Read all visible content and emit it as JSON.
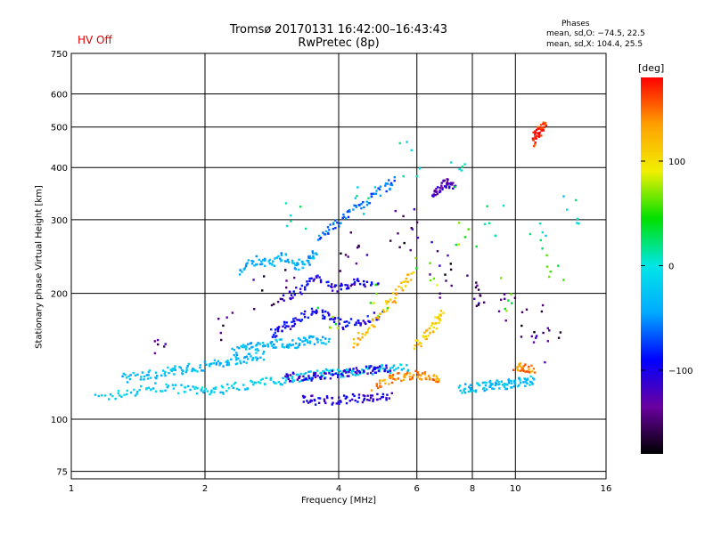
{
  "header": {
    "title_line1": "Tromsø 20170131 16:42:00–16:43:43",
    "title_line2": "RwPretec (8p)",
    "hv_status": "HV Off",
    "phases_title": "Phases",
    "phases_o": "mean, sd,O: −74.5, 22.5",
    "phases_x": "mean, sd,X: 104.4, 25.5"
  },
  "colorbar": {
    "unit": "[deg]",
    "ticks": [
      {
        "label": "100",
        "value": 100
      },
      {
        "label": "0",
        "value": 0
      },
      {
        "label": "−100",
        "value": -100
      }
    ],
    "range": [
      -180,
      180
    ],
    "colors": [
      "#000000",
      "#6a00a0",
      "#0000ff",
      "#00aaff",
      "#00e6e6",
      "#00e000",
      "#f0f000",
      "#ffa000",
      "#ff0000"
    ]
  },
  "chart_data": {
    "type": "scatter",
    "title": "Tromsø 20170131 16:42:00–16:43:43",
    "subtitle": "RwPretec (8p)",
    "xlabel": "Frequency [MHz]",
    "ylabel": "Stationary phase Virtual Height [km]",
    "x_scale": "log",
    "y_scale": "log",
    "xlim": [
      1,
      16
    ],
    "ylim": [
      72,
      750
    ],
    "grid": true,
    "x_ticks": [
      "1",
      "2",
      "4",
      "6",
      "8",
      "10",
      "16"
    ],
    "y_ticks": [
      "75",
      "100",
      "200",
      "300",
      "400",
      "500",
      "600",
      "750"
    ],
    "traces": [
      {
        "x": [
          1.15,
          1.35,
          1.55,
          1.8,
          2.0,
          2.2,
          2.5,
          2.8,
          3.1,
          3.4,
          3.7,
          4.0,
          4.3,
          4.7,
          5.2,
          5.8
        ],
        "y": [
          112,
          116,
          119,
          118,
          116,
          118,
          121,
          123,
          125,
          127,
          128,
          129,
          130,
          131,
          132,
          133
        ],
        "phase": -20
      },
      {
        "x": [
          1.3,
          1.45,
          1.6,
          1.75,
          1.9,
          2.1,
          2.3,
          2.5,
          2.7
        ],
        "y": [
          125,
          127,
          129,
          131,
          133,
          135,
          138,
          140,
          142
        ],
        "phase": -30
      },
      {
        "x": [
          2.3,
          2.5,
          2.7,
          2.9,
          3.1,
          3.3,
          3.5,
          3.8
        ],
        "y": [
          145,
          150,
          148,
          152,
          150,
          153,
          155,
          154
        ],
        "phase": -35
      },
      {
        "x": [
          3.3,
          3.6,
          4.0,
          4.4,
          4.8,
          5.3
        ],
        "y": [
          112,
          111,
          111,
          112,
          113,
          114
        ],
        "phase": -105
      },
      {
        "x": [
          3.0,
          3.3,
          3.6,
          4.0,
          4.4,
          4.8,
          5.2
        ],
        "y": [
          125,
          127,
          126,
          128,
          130,
          132,
          133
        ],
        "phase": -110
      },
      {
        "x": [
          2.8,
          3.0,
          3.2,
          3.5,
          3.8,
          4.1,
          4.5,
          5.0
        ],
        "y": [
          160,
          165,
          172,
          180,
          176,
          168,
          172,
          178
        ],
        "phase": -95
      },
      {
        "x": [
          3.0,
          3.3,
          3.6,
          4.0,
          4.4,
          4.9
        ],
        "y": [
          195,
          205,
          218,
          205,
          215,
          210
        ],
        "phase": -100
      },
      {
        "x": [
          2.4,
          2.6,
          2.8,
          3.0,
          3.2,
          3.4,
          3.6
        ],
        "y": [
          225,
          240,
          235,
          245,
          230,
          240,
          250
        ],
        "phase": -40
      },
      {
        "x": [
          3.6,
          3.9,
          4.2,
          4.6,
          5.0,
          5.4
        ],
        "y": [
          270,
          290,
          310,
          330,
          355,
          375
        ],
        "phase": -60
      },
      {
        "x": [
          4.3,
          4.7,
          5.1,
          5.5,
          5.9
        ],
        "y": [
          150,
          165,
          185,
          205,
          225
        ],
        "phase": 120
      },
      {
        "x": [
          4.8,
          5.2,
          5.6,
          6.0,
          6.4,
          6.8
        ],
        "y": [
          120,
          124,
          127,
          128,
          126,
          124
        ],
        "phase": 140
      },
      {
        "x": [
          6.0,
          6.3,
          6.6,
          6.9
        ],
        "y": [
          150,
          160,
          170,
          180
        ],
        "phase": 110
      },
      {
        "x": [
          7.5,
          8.0,
          8.5,
          9.0,
          9.5,
          10.0,
          10.5,
          11.0
        ],
        "y": [
          118,
          119,
          120,
          121,
          121,
          122,
          123,
          124
        ],
        "phase": -30
      },
      {
        "x": [
          10.0,
          10.5,
          11.0
        ],
        "y": [
          132,
          133,
          132
        ],
        "phase": 140
      },
      {
        "x": [
          6.5,
          6.8,
          7.0,
          7.3
        ],
        "y": [
          340,
          355,
          370,
          360
        ],
        "phase": -120
      },
      {
        "x": [
          11.0,
          11.2,
          11.4,
          11.7
        ],
        "y": [
          460,
          480,
          495,
          505
        ],
        "phase": 170
      }
    ],
    "scatter": [
      {
        "x": [
          1.6,
          2.2,
          3.1,
          4.5,
          5.7,
          6.8,
          8.1,
          9.4,
          10.6,
          12.2
        ],
        "y": [
          140,
          170,
          210,
          260,
          300,
          240,
          200,
          180,
          165,
          150
        ],
        "phase": -140
      },
      {
        "x": [
          3.8,
          4.9,
          6.3,
          7.7,
          9.8,
          12.5
        ],
        "y": [
          180,
          195,
          230,
          270,
          200,
          230
        ],
        "phase": 60
      },
      {
        "x": [
          3.2,
          4.6,
          5.8,
          7.4,
          9.0,
          11.4,
          13.5
        ],
        "y": [
          300,
          340,
          420,
          380,
          300,
          270,
          310
        ],
        "phase": 0
      },
      {
        "x": [
          2.7,
          4.2,
          5.5,
          6.9,
          8.3,
          10.9
        ],
        "y": [
          200,
          230,
          260,
          215,
          205,
          170
        ],
        "phase": -160
      }
    ]
  }
}
